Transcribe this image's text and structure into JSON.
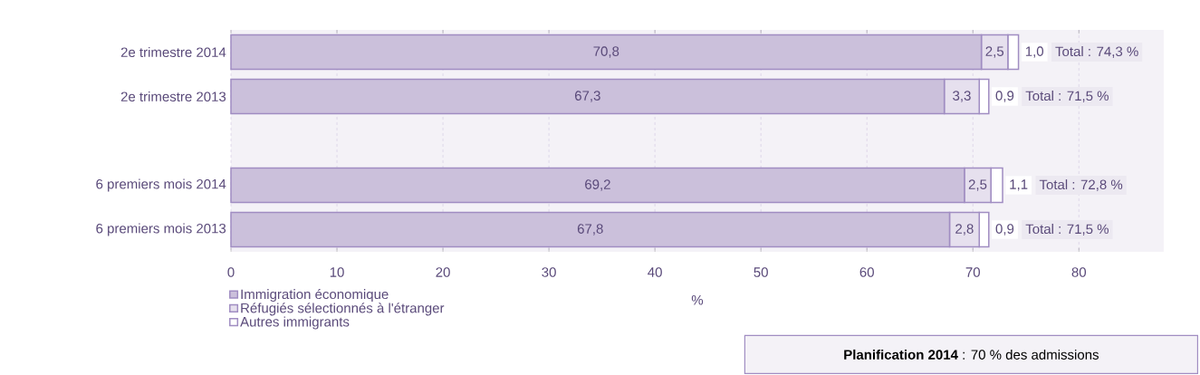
{
  "chart_data": {
    "type": "bar",
    "orientation": "horizontal",
    "stacked": true,
    "categories": [
      "2e trimestre 2014",
      "2e trimestre 2013",
      null,
      "6 premiers mois 2014",
      "6 premiers mois 2013"
    ],
    "series": [
      {
        "name": "Immigration économique",
        "color": "#cbc0db",
        "values": [
          70.8,
          67.3,
          null,
          69.2,
          67.8
        ],
        "value_labels": [
          "70,8",
          "67,3",
          null,
          "69,2",
          "67,8"
        ]
      },
      {
        "name": "Réfugiés sélectionnés à l'étranger",
        "color": "#e6e0ee",
        "values": [
          2.5,
          3.3,
          null,
          2.5,
          2.8
        ],
        "value_labels": [
          "2,5",
          "3,3",
          null,
          "2,5",
          "2,8"
        ]
      },
      {
        "name": "Autres immigrants",
        "color": "#ffffff",
        "values": [
          1.0,
          0.9,
          null,
          1.1,
          0.9
        ],
        "value_labels": [
          "1,0",
          "0,9",
          null,
          "1,1",
          "0,9"
        ]
      }
    ],
    "totals": [
      "Total : 74,3 %",
      "Total : 71,5 %",
      null,
      "Total : 72,8 %",
      "Total : 71,5 %"
    ],
    "xlim": [
      0,
      88
    ],
    "xticks": [
      0,
      10,
      20,
      30,
      40,
      50,
      60,
      70,
      80
    ],
    "xlabel": "%",
    "grid": "x",
    "legend": "bottom left",
    "annotations": [
      "**Planification 2014** : 70 % des admissions"
    ]
  }
}
